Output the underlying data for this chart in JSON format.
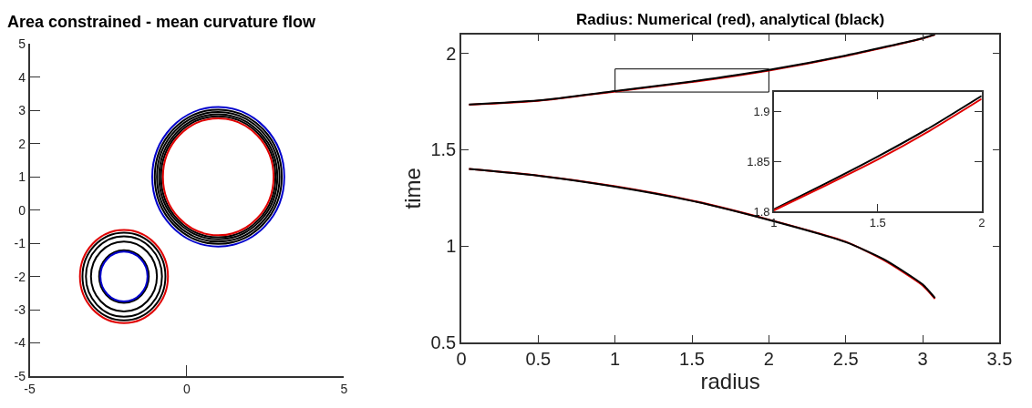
{
  "chart_data": [
    {
      "type": "line",
      "title": "Area constrained - mean curvature flow",
      "xlim": [
        -5,
        5
      ],
      "ylim": [
        -5,
        5
      ],
      "xticks": [
        -5,
        0,
        5
      ],
      "yticks": [
        -5,
        -4,
        -3,
        -2,
        -1,
        0,
        1,
        2,
        3,
        4,
        5
      ],
      "grid": false
    },
    {
      "type": "line",
      "title": "Radius: Numerical (red), analytical (black)",
      "xlabel": "radius",
      "ylabel": "time",
      "xlim": [
        0,
        3.5
      ],
      "ylim": [
        0.5,
        2.1
      ],
      "xticks": [
        0,
        0.5,
        1,
        1.5,
        2,
        2.5,
        3,
        3.5
      ],
      "yticks": [
        0.5,
        1,
        1.5,
        2
      ],
      "grid": false,
      "series": [
        {
          "color": "#e00000",
          "x": [
            0.05,
            0.5,
            1,
            1.5,
            2,
            2.5,
            3,
            3.08
          ],
          "values": [
            1.734,
            1.754,
            1.803,
            1.852,
            1.912,
            1.987,
            2.078,
            2.098
          ]
        },
        {
          "color": "#000000",
          "x": [
            0.05,
            0.5,
            1,
            1.5,
            2,
            2.5,
            3,
            3.08
          ],
          "values": [
            1.735,
            1.756,
            1.805,
            1.855,
            1.915,
            1.99,
            2.08,
            2.1
          ]
        },
        {
          "color": "#e00000",
          "x": [
            0.05,
            0.5,
            1,
            1.5,
            2,
            2.5,
            2.75,
            3,
            3.08
          ],
          "values": [
            1.4,
            1.366,
            1.31,
            1.236,
            1.137,
            1.022,
            0.925,
            0.795,
            0.725
          ]
        },
        {
          "color": "#000000",
          "x": [
            0.05,
            0.5,
            1,
            1.5,
            2,
            2.5,
            2.75,
            3,
            3.08
          ],
          "values": [
            1.4,
            1.365,
            1.308,
            1.234,
            1.135,
            1.02,
            0.93,
            0.8,
            0.73
          ]
        }
      ]
    },
    {
      "type": "line",
      "xlim": [
        1,
        2
      ],
      "ylim": [
        1.8,
        1.92
      ],
      "xticks": [
        1,
        1.5,
        2
      ],
      "yticks": [
        1.8,
        1.85,
        1.9
      ],
      "grid": false,
      "series": [
        {
          "color": "#000000",
          "x": [
            1,
            1.25,
            1.5,
            1.75,
            2
          ],
          "values": [
            1.802,
            1.828,
            1.855,
            1.884,
            1.916
          ]
        },
        {
          "color": "#e00000",
          "x": [
            1,
            1.25,
            1.5,
            1.75,
            2
          ],
          "values": [
            1.801,
            1.826,
            1.852,
            1.881,
            1.913
          ]
        }
      ]
    }
  ]
}
